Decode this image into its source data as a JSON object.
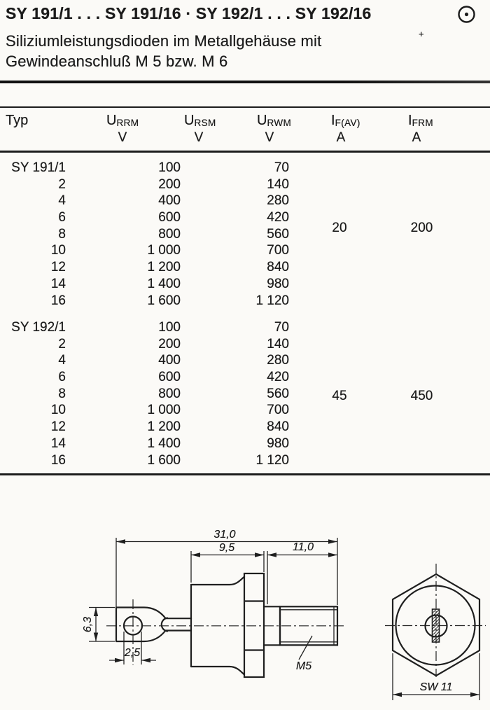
{
  "page": {
    "title": "SY 191/1 . . . SY 191/16 · SY 192/1 . . . SY 192/16",
    "subtitle_line1": "Siliziumleistungsdioden im Metallgehäuse mit",
    "subtitle_line2": "Gewindeanschluß M 5 bzw. M 6",
    "logo_icon": "circle-dot",
    "scan_artifact": "+"
  },
  "table": {
    "headers": {
      "typ": "Typ",
      "cols": [
        {
          "sym": "U",
          "sub": "RRM",
          "unit": "V"
        },
        {
          "sym": "U",
          "sub": "RSM",
          "unit": "V"
        },
        {
          "sym": "U",
          "sub": "RWM",
          "unit": "V"
        },
        {
          "sym": "I",
          "sub": "F(AV)",
          "unit": "A"
        },
        {
          "sym": "I",
          "sub": "FRM",
          "unit": "A"
        }
      ]
    },
    "groups": [
      {
        "name": "SY 191",
        "if_av": "20",
        "ifrm": "200",
        "rows": [
          {
            "typ": "SY 191/1",
            "urrm": "100",
            "urwm": "70"
          },
          {
            "typ": "2",
            "urrm": "200",
            "urwm": "140"
          },
          {
            "typ": "4",
            "urrm": "400",
            "urwm": "280"
          },
          {
            "typ": "6",
            "urrm": "600",
            "urwm": "420"
          },
          {
            "typ": "8",
            "urrm": "800",
            "urwm": "560"
          },
          {
            "typ": "10",
            "urrm": "1 000",
            "urwm": "700"
          },
          {
            "typ": "12",
            "urrm": "1 200",
            "urwm": "840"
          },
          {
            "typ": "14",
            "urrm": "1 400",
            "urwm": "980"
          },
          {
            "typ": "16",
            "urrm": "1 600",
            "urwm": "1 120"
          }
        ]
      },
      {
        "name": "SY 192",
        "if_av": "45",
        "ifrm": "450",
        "rows": [
          {
            "typ": "SY 192/1",
            "urrm": "100",
            "urwm": "70"
          },
          {
            "typ": "2",
            "urrm": "200",
            "urwm": "140"
          },
          {
            "typ": "4",
            "urrm": "400",
            "urwm": "280"
          },
          {
            "typ": "6",
            "urrm": "600",
            "urwm": "420"
          },
          {
            "typ": "8",
            "urrm": "800",
            "urwm": "560"
          },
          {
            "typ": "10",
            "urrm": "1 000",
            "urwm": "700"
          },
          {
            "typ": "12",
            "urrm": "1 200",
            "urwm": "840"
          },
          {
            "typ": "14",
            "urrm": "1 400",
            "urwm": "980"
          },
          {
            "typ": "16",
            "urrm": "1 600",
            "urwm": "1 120"
          }
        ]
      }
    ]
  },
  "drawing": {
    "side": {
      "dim_overall": "31,0",
      "dim_body": "9,5",
      "dim_thread": "11,0",
      "dim_tab_height": "6,3",
      "dim_hole": "2,5",
      "thread_label": "M5"
    },
    "front": {
      "dim_across_flats": "SW 11"
    }
  }
}
